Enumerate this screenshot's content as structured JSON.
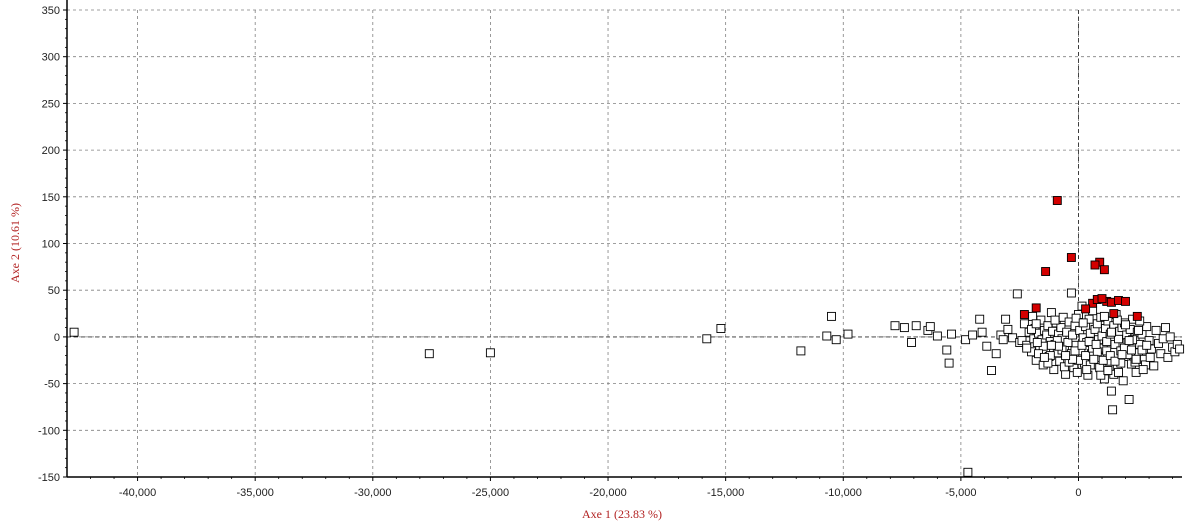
{
  "chart_data": {
    "type": "scatter",
    "xlabel": "Axe 1 (23.83 %)",
    "ylabel": "Axe 2 (10.61 %)",
    "xlim": [
      -43000,
      4400
    ],
    "ylim": [
      -150,
      350
    ],
    "xticks": [
      -40000,
      -35000,
      -30000,
      -25000,
      -20000,
      -15000,
      -10000,
      -5000,
      0
    ],
    "xtick_labels": [
      "-40,000",
      "-35,000",
      "-30,000",
      "-25,000",
      "-20,000",
      "-15,000",
      "-10,000",
      "-5,000",
      "0"
    ],
    "yticks": [
      -150,
      -100,
      -50,
      0,
      50,
      100,
      150,
      200,
      250,
      300,
      350
    ],
    "ytick_labels": [
      "-150",
      "-100",
      "-50",
      "0",
      "50",
      "100",
      "150",
      "200",
      "250",
      "300",
      "350"
    ],
    "grid": true,
    "colors": {
      "highlight": "#d40000",
      "marker_edge": "#000000",
      "axis_title": "#b22222",
      "grid": "#808080"
    },
    "series": [
      {
        "marker": "open-square",
        "points": [
          [
            -42700,
            5
          ],
          [
            -27600,
            -18
          ],
          [
            -25000,
            -17
          ],
          [
            -15800,
            -2
          ],
          [
            -15200,
            9
          ],
          [
            -11800,
            -15
          ],
          [
            -10700,
            1
          ],
          [
            -10500,
            22
          ],
          [
            -10300,
            -3
          ],
          [
            -9800,
            3
          ],
          [
            -7800,
            12
          ],
          [
            -7400,
            10
          ],
          [
            -7100,
            -6
          ],
          [
            -6900,
            12
          ],
          [
            -6400,
            7
          ],
          [
            -6300,
            11
          ],
          [
            -6000,
            1
          ],
          [
            -5600,
            -14
          ],
          [
            -5500,
            -28
          ],
          [
            -5400,
            3
          ],
          [
            -4800,
            -3
          ],
          [
            -4700,
            -145
          ],
          [
            -4500,
            2
          ],
          [
            -4200,
            19
          ],
          [
            -4100,
            5
          ],
          [
            -3900,
            -10
          ],
          [
            -3700,
            -36
          ],
          [
            -3500,
            -18
          ],
          [
            -3300,
            2
          ],
          [
            -3200,
            -3
          ],
          [
            -3100,
            19
          ],
          [
            -3000,
            8
          ],
          [
            -2800,
            -1
          ],
          [
            -2600,
            46
          ],
          [
            -2500,
            -6
          ],
          [
            -2400,
            -4
          ],
          [
            -2300,
            14
          ],
          [
            -2200,
            -9
          ],
          [
            -2100,
            5
          ],
          [
            -2000,
            -16
          ],
          [
            -1950,
            22
          ],
          [
            -1900,
            -2
          ],
          [
            -1850,
            9
          ],
          [
            -1800,
            -25
          ],
          [
            -1700,
            4
          ],
          [
            -1650,
            -12
          ],
          [
            -1600,
            18
          ],
          [
            -1550,
            -3
          ],
          [
            -1500,
            -30
          ],
          [
            -1450,
            7
          ],
          [
            -1400,
            -14
          ],
          [
            -1350,
            2
          ],
          [
            -1300,
            12
          ],
          [
            -1250,
            -21
          ],
          [
            -1200,
            -5
          ],
          [
            -1150,
            26
          ],
          [
            -1100,
            6
          ],
          [
            -1050,
            -35
          ],
          [
            -1000,
            -8
          ],
          [
            -950,
            15
          ],
          [
            -900,
            -17
          ],
          [
            -850,
            3
          ],
          [
            -800,
            -26
          ],
          [
            -750,
            10
          ],
          [
            -700,
            -2
          ],
          [
            -650,
            21
          ],
          [
            -600,
            -12
          ],
          [
            -550,
            -40
          ],
          [
            -500,
            5
          ],
          [
            -450,
            -6
          ],
          [
            -400,
            16
          ],
          [
            -350,
            -22
          ],
          [
            -300,
            47
          ],
          [
            -250,
            2
          ],
          [
            -200,
            -33
          ],
          [
            -150,
            12
          ],
          [
            -100,
            -9
          ],
          [
            -50,
            -38
          ],
          [
            0,
            24
          ],
          [
            50,
            7
          ],
          [
            100,
            -15
          ],
          [
            150,
            33
          ],
          [
            200,
            -1
          ],
          [
            250,
            -28
          ],
          [
            300,
            11
          ],
          [
            350,
            -6
          ],
          [
            400,
            -41
          ],
          [
            450,
            19
          ],
          [
            500,
            4
          ],
          [
            550,
            -18
          ],
          [
            600,
            28
          ],
          [
            650,
            -9
          ],
          [
            700,
            8
          ],
          [
            750,
            -30
          ],
          [
            800,
            14
          ],
          [
            850,
            -3
          ],
          [
            900,
            -22
          ],
          [
            950,
            21
          ],
          [
            1000,
            1
          ],
          [
            1050,
            -12
          ],
          [
            1100,
            -45
          ],
          [
            1150,
            9
          ],
          [
            1200,
            -5
          ],
          [
            1250,
            17
          ],
          [
            1300,
            -26
          ],
          [
            1350,
            3
          ],
          [
            1400,
            -58
          ],
          [
            1450,
            -78
          ],
          [
            1500,
            12
          ],
          [
            1550,
            -8
          ],
          [
            1600,
            24
          ],
          [
            1650,
            -34
          ],
          [
            1700,
            -2
          ],
          [
            1750,
            6
          ],
          [
            1800,
            -15
          ],
          [
            1850,
            10
          ],
          [
            1900,
            -47
          ],
          [
            1950,
            15
          ],
          [
            2000,
            -21
          ],
          [
            2050,
            2
          ],
          [
            2100,
            -6
          ],
          [
            2150,
            -67
          ],
          [
            2200,
            8
          ],
          [
            2250,
            -29
          ],
          [
            2300,
            19
          ],
          [
            2350,
            -12
          ],
          [
            2400,
            -1
          ],
          [
            2450,
            -38
          ],
          [
            2500,
            5
          ],
          [
            2550,
            -17
          ],
          [
            2600,
            -8
          ],
          [
            2700,
            3
          ],
          [
            2800,
            -24
          ],
          [
            2900,
            11
          ],
          [
            3000,
            -4
          ],
          [
            3100,
            -13
          ],
          [
            3200,
            -31
          ],
          [
            3300,
            7
          ],
          [
            3400,
            -7
          ],
          [
            3500,
            -18
          ],
          [
            3600,
            -2
          ],
          [
            3700,
            10
          ],
          [
            3800,
            -22
          ],
          [
            3900,
            0
          ],
          [
            4000,
            -11
          ],
          [
            4100,
            -16
          ],
          [
            4200,
            -8
          ],
          [
            4300,
            -13
          ],
          [
            -2000,
            8
          ],
          [
            -1800,
            14
          ],
          [
            -1500,
            -10
          ],
          [
            -1200,
            -20
          ],
          [
            -900,
            -4
          ],
          [
            -600,
            -32
          ],
          [
            -300,
            -18
          ],
          [
            0,
            -25
          ],
          [
            300,
            -20
          ],
          [
            600,
            -12
          ],
          [
            900,
            -33
          ],
          [
            1200,
            -15
          ],
          [
            1500,
            -40
          ],
          [
            1800,
            -28
          ],
          [
            2100,
            -19
          ],
          [
            2400,
            -27
          ],
          [
            2700,
            -14
          ],
          [
            -2200,
            -12
          ],
          [
            -1700,
            -18
          ],
          [
            -1300,
            -28
          ],
          [
            -1000,
            18
          ],
          [
            -700,
            -14
          ],
          [
            -400,
            -27
          ],
          [
            -100,
            20
          ],
          [
            200,
            15
          ],
          [
            500,
            -30
          ],
          [
            800,
            -16
          ],
          [
            1100,
            22
          ],
          [
            1400,
            5
          ],
          [
            1700,
            -38
          ],
          [
            2000,
            13
          ],
          [
            2300,
            -3
          ],
          [
            2600,
            17
          ],
          [
            2900,
            -9
          ],
          [
            -150,
            -15
          ],
          [
            150,
            -9
          ],
          [
            450,
            -5
          ],
          [
            750,
            -8
          ],
          [
            1050,
            -25
          ],
          [
            1350,
            -20
          ],
          [
            1650,
            18
          ],
          [
            1950,
            -12
          ],
          [
            2250,
            -14
          ],
          [
            2550,
            7
          ],
          [
            2850,
            -30
          ],
          [
            -250,
            -24
          ],
          [
            -550,
            -20
          ],
          [
            -850,
            -10
          ],
          [
            -1150,
            -9
          ],
          [
            -1450,
            -22
          ],
          [
            -1750,
            -6
          ],
          [
            350,
            -35
          ],
          [
            650,
            -24
          ],
          [
            950,
            -41
          ],
          [
            1250,
            -36
          ],
          [
            1550,
            -26
          ],
          [
            1850,
            -19
          ],
          [
            2150,
            -4
          ],
          [
            2450,
            -24
          ],
          [
            2750,
            -35
          ],
          [
            3050,
            -22
          ]
        ]
      },
      {
        "marker": "filled-square",
        "color": "#d40000",
        "points": [
          [
            -900,
            146
          ],
          [
            -300,
            85
          ],
          [
            -1400,
            70
          ],
          [
            900,
            80
          ],
          [
            1100,
            72
          ],
          [
            700,
            77
          ],
          [
            -1800,
            31
          ],
          [
            -2300,
            24
          ],
          [
            600,
            36
          ],
          [
            800,
            40
          ],
          [
            1200,
            38
          ],
          [
            1400,
            37
          ],
          [
            1700,
            39
          ],
          [
            2000,
            38
          ],
          [
            1000,
            41
          ],
          [
            1500,
            25
          ],
          [
            2500,
            22
          ],
          [
            300,
            30
          ]
        ]
      }
    ]
  }
}
